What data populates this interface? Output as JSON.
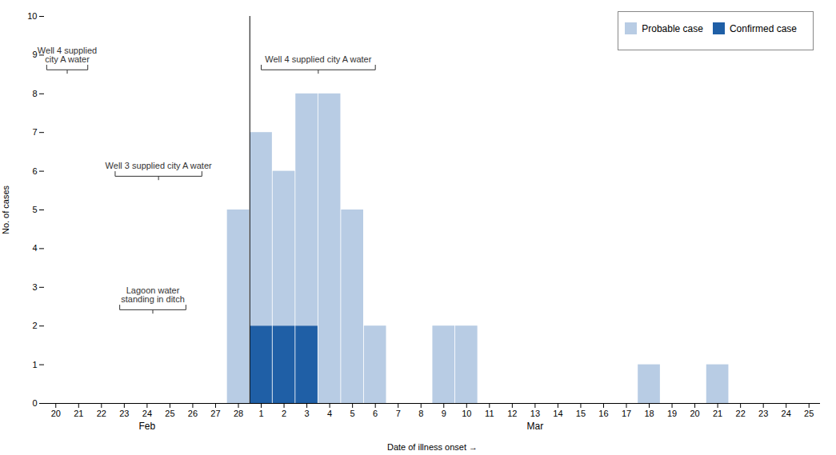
{
  "chart_data": {
    "type": "bar",
    "stacked": true,
    "xlabel": "Date of illness onset",
    "ylabel": "No. of cases",
    "categories": [
      "20",
      "21",
      "22",
      "23",
      "24",
      "25",
      "26",
      "27",
      "28",
      "1",
      "2",
      "3",
      "4",
      "5",
      "6",
      "7",
      "8",
      "9",
      "10",
      "11",
      "12",
      "13",
      "14",
      "15",
      "16",
      "17",
      "18",
      "19",
      "20",
      "21",
      "22",
      "23",
      "24",
      "25"
    ],
    "series": [
      {
        "name": "Confirmed case",
        "color": "#1f5fa6",
        "values": [
          0,
          0,
          0,
          0,
          0,
          0,
          0,
          0,
          0,
          2,
          2,
          2,
          0,
          0,
          0,
          0,
          0,
          0,
          0,
          0,
          0,
          0,
          0,
          0,
          0,
          0,
          0,
          0,
          0,
          0,
          0,
          0,
          0,
          0
        ]
      },
      {
        "name": "Probable case",
        "color": "#b8cce4",
        "values": [
          0,
          0,
          0,
          0,
          0,
          0,
          0,
          0,
          5,
          5,
          4,
          6,
          8,
          5,
          2,
          0,
          0,
          2,
          2,
          0,
          0,
          0,
          0,
          0,
          0,
          0,
          1,
          0,
          0,
          1,
          0,
          0,
          0,
          0
        ]
      }
    ],
    "ylim": [
      0,
      10
    ],
    "yticks": [
      0,
      1,
      2,
      3,
      4,
      5,
      6,
      7,
      8,
      9,
      10
    ],
    "grid": false,
    "legend": "upper right",
    "groups": [
      {
        "label": "Feb",
        "start": 0,
        "end": 8
      },
      {
        "label": "Mar",
        "start": 9,
        "end": 33
      }
    ],
    "annotations": [
      {
        "text": "Well 4 supplied\ncity A water",
        "x_start": -0.4,
        "x_end": 1.4,
        "y": 8.75
      },
      {
        "text": "Well 3 supplied city A water",
        "x_start": 2.6,
        "x_end": 6.4,
        "y": 6.0
      },
      {
        "text": "Lagoon water\nstanding in ditch",
        "x_start": 2.8,
        "x_end": 5.7,
        "y": 2.55
      },
      {
        "text": "Well 4 supplied city A water",
        "x_start": 9.0,
        "x_end": 14.0,
        "y": 8.75
      }
    ]
  }
}
